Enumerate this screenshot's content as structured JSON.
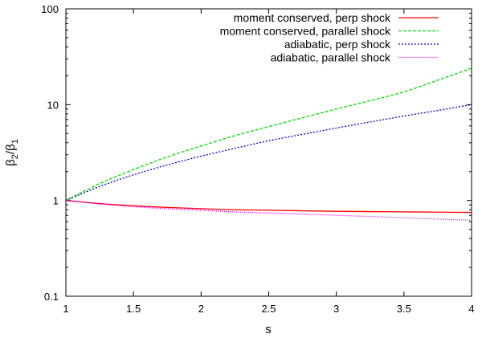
{
  "chart_data": {
    "type": "line",
    "xlabel": "s",
    "ylabel": {
      "base": "β",
      "sub_num": "2",
      "slash": "/",
      "sub_den": "1"
    },
    "xlim": [
      1,
      4
    ],
    "ylim": [
      0.1,
      100
    ],
    "yscale": "log",
    "grid": false,
    "legend_position": "top-right",
    "x_ticks": [
      {
        "value": 1,
        "label": "1"
      },
      {
        "value": 1.5,
        "label": "1.5"
      },
      {
        "value": 2,
        "label": "2"
      },
      {
        "value": 2.5,
        "label": "2.5"
      },
      {
        "value": 3,
        "label": "3"
      },
      {
        "value": 3.5,
        "label": "3.5"
      },
      {
        "value": 4,
        "label": "4"
      }
    ],
    "y_ticks": [
      {
        "value": 0.1,
        "label": "0.1"
      },
      {
        "value": 1,
        "label": "1"
      },
      {
        "value": 10,
        "label": "10"
      },
      {
        "value": 100,
        "label": "100"
      }
    ],
    "x": [
      1,
      1.25,
      1.5,
      1.75,
      2,
      2.25,
      2.5,
      2.75,
      3,
      3.25,
      3.5,
      3.75,
      4
    ],
    "series": [
      {
        "name": "moment conserved, perp shock",
        "color": "#ff0000",
        "dash": "solid",
        "values": [
          1.0,
          0.928,
          0.88,
          0.845,
          0.82,
          0.8,
          0.79,
          0.78,
          0.77,
          0.765,
          0.76,
          0.755,
          0.75
        ]
      },
      {
        "name": "moment conserved, parallel shock",
        "color": "#00dd00",
        "dash": "dashed",
        "values": [
          1.0,
          1.5,
          2.1,
          2.85,
          3.7,
          4.75,
          5.9,
          7.3,
          9.0,
          11.0,
          13.6,
          18.0,
          24.0
        ]
      },
      {
        "name": "adiabatic, perp shock",
        "color": "#0000cc",
        "dash": "dotted",
        "values": [
          1.0,
          1.4,
          1.85,
          2.35,
          2.9,
          3.5,
          4.2,
          4.9,
          5.7,
          6.6,
          7.6,
          8.7,
          10.0
        ]
      },
      {
        "name": "adiabatic, parallel shock",
        "color": "#dd00dd",
        "dash": "fine-dotted",
        "values": [
          1.0,
          0.92,
          0.86,
          0.82,
          0.79,
          0.76,
          0.74,
          0.72,
          0.7,
          0.68,
          0.66,
          0.64,
          0.62
        ]
      }
    ]
  }
}
